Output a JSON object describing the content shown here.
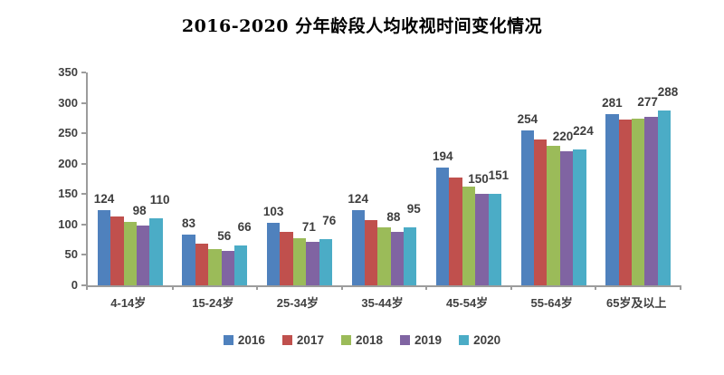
{
  "chart_data": {
    "type": "bar",
    "title": "2016-2020 分年龄段人均收视时间变化情况",
    "xlabel": "",
    "ylabel": "",
    "categories": [
      "4-14岁",
      "15-24岁",
      "25-34岁",
      "35-44岁",
      "45-54岁",
      "55-64岁",
      "65岁及以上"
    ],
    "series": [
      {
        "name": "2016",
        "color": "#4F81BD",
        "values": [
          124,
          83,
          103,
          124,
          194,
          254,
          281
        ],
        "labeled": true,
        "label_offset": 5,
        "label_dx": 0
      },
      {
        "name": "2017",
        "color": "#C0504D",
        "values": [
          113,
          69,
          88,
          108,
          177,
          240,
          272
        ],
        "labeled": false,
        "label_offset": 0,
        "label_dx": 0
      },
      {
        "name": "2018",
        "color": "#9BBB59",
        "values": [
          104,
          60,
          77,
          96,
          163,
          229,
          274
        ],
        "labeled": false,
        "label_offset": 0,
        "label_dx": 0
      },
      {
        "name": "2019",
        "color": "#8064A2",
        "values": [
          98,
          56,
          71,
          88,
          150,
          220,
          277
        ],
        "labeled": true,
        "label_offset": 9,
        "label_dx": -4
      },
      {
        "name": "2020",
        "color": "#4BACC6",
        "values": [
          110,
          66,
          76,
          95,
          151,
          224,
          288
        ],
        "labeled": true,
        "label_offset": 13,
        "label_dx": 4
      }
    ],
    "ylim": [
      0,
      350
    ],
    "yticks": [
      0,
      50,
      100,
      150,
      200,
      250,
      300,
      350
    ],
    "grid": false,
    "legend_position": "bottom",
    "legend_entries": [
      "2016",
      "2017",
      "2018",
      "2019",
      "2020"
    ],
    "axis_color": "#9c9c9c",
    "text_color": "#404040",
    "background": "#ffffff"
  }
}
